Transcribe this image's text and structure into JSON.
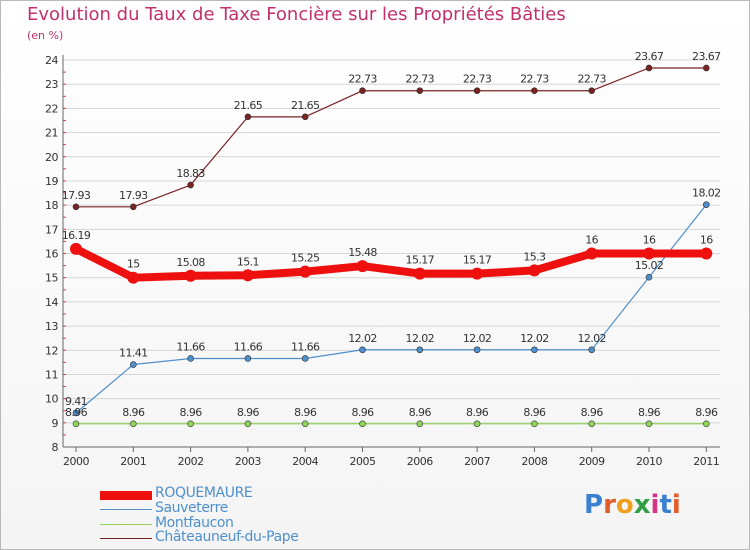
{
  "title": "Evolution du Taux de Taxe Foncière sur les Propriétés Bâties",
  "unit": "(en %)",
  "logo": "Proxiti",
  "chart_data": {
    "type": "line",
    "title": "Evolution du Taux de Taxe Foncière sur les Propriétés Bâties",
    "ylabel": "(en %)",
    "xlabel": "",
    "x": [
      "2000",
      "2001",
      "2002",
      "2003",
      "2004",
      "2005",
      "2006",
      "2007",
      "2008",
      "2009",
      "2010",
      "2011"
    ],
    "ylim": [
      8,
      24
    ],
    "yticks": [
      8,
      9,
      10,
      11,
      12,
      13,
      14,
      15,
      16,
      17,
      18,
      19,
      20,
      21,
      22,
      23,
      24
    ],
    "grid": "horizontal",
    "legend_position": "bottom-left",
    "series": [
      {
        "name": "ROQUEMAURE",
        "color": "#ee0f0f",
        "values": [
          16.19,
          15,
          15.08,
          15.1,
          15.25,
          15.48,
          15.17,
          15.17,
          15.3,
          16,
          16,
          16
        ],
        "labels": [
          "16.19",
          "15",
          "15.08",
          "15.1",
          "15.25",
          "15.48",
          "15.17",
          "15.17",
          "15.3",
          "16",
          "16",
          "16"
        ]
      },
      {
        "name": "Sauveterre",
        "color": "#4f8fcb",
        "values": [
          9.41,
          11.41,
          11.66,
          11.66,
          11.66,
          12.02,
          12.02,
          12.02,
          12.02,
          12.02,
          15.02,
          18.02
        ],
        "labels": [
          "9.41",
          "11.41",
          "11.66",
          "11.66",
          "11.66",
          "12.02",
          "12.02",
          "12.02",
          "12.02",
          "12.02",
          "15.02",
          "18.02"
        ]
      },
      {
        "name": "Montfaucon",
        "color": "#8fd35a",
        "values": [
          8.96,
          8.96,
          8.96,
          8.96,
          8.96,
          8.96,
          8.96,
          8.96,
          8.96,
          8.96,
          8.96,
          8.96
        ],
        "labels": [
          "8.96",
          "8.96",
          "8.96",
          "8.96",
          "8.96",
          "8.96",
          "8.96",
          "8.96",
          "8.96",
          "8.96",
          "8.96",
          "8.96"
        ]
      },
      {
        "name": "Châteauneuf-du-Pape",
        "color": "#7a2323",
        "values": [
          17.93,
          17.93,
          18.83,
          21.65,
          21.65,
          22.73,
          22.73,
          22.73,
          22.73,
          22.73,
          23.67,
          23.67
        ],
        "labels": [
          "17.93",
          "17.93",
          "18.83",
          "21.65",
          "21.65",
          "22.73",
          "22.73",
          "22.73",
          "22.73",
          "22.73",
          "23.67",
          "23.67"
        ]
      }
    ]
  }
}
